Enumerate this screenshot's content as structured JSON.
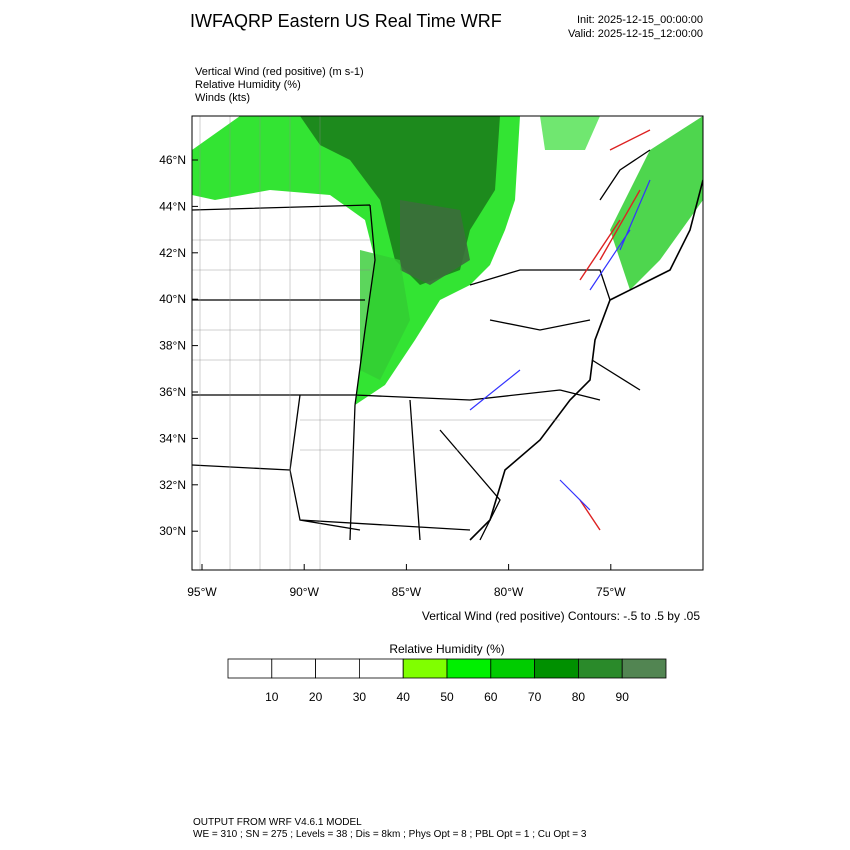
{
  "header": {
    "title": "IWFAQRP Eastern US Real Time WRF",
    "init": "Init: 2025-12-15_00:00:00",
    "valid": "Valid: 2025-12-15_12:00:00"
  },
  "fields": [
    "Vertical Wind (red positive)   (m s-1)",
    "Relative Humidity   (%)",
    "Winds   (kts)"
  ],
  "map": {
    "lat_labels": [
      "46°N",
      "44°N",
      "42°N",
      "40°N",
      "38°N",
      "36°N",
      "34°N",
      "32°N",
      "30°N"
    ],
    "lon_labels": [
      "95°W",
      "90°W",
      "85°W",
      "80°W",
      "75°W"
    ],
    "contour_note": "Vertical Wind (red positive) Contours: -.5 to .5 by .05"
  },
  "colorbar": {
    "title": "Relative Humidity  (%)",
    "labels": [
      "10",
      "20",
      "30",
      "40",
      "50",
      "60",
      "70",
      "80",
      "90"
    ],
    "colors": [
      "#ffffff",
      "#ffffff",
      "#ffffff",
      "#ffffff",
      "#80ff00",
      "#00f000",
      "#00cc00",
      "#009000",
      "#2a8a2a",
      "#528552"
    ]
  },
  "footer": {
    "model": "OUTPUT FROM WRF V4.6.1 MODEL",
    "config": "WE = 310 ; SN = 275 ; Levels = 38 ; Dis = 8km ; Phys Opt = 8 ; PBL Opt = 1 ; Cu Opt = 3"
  }
}
